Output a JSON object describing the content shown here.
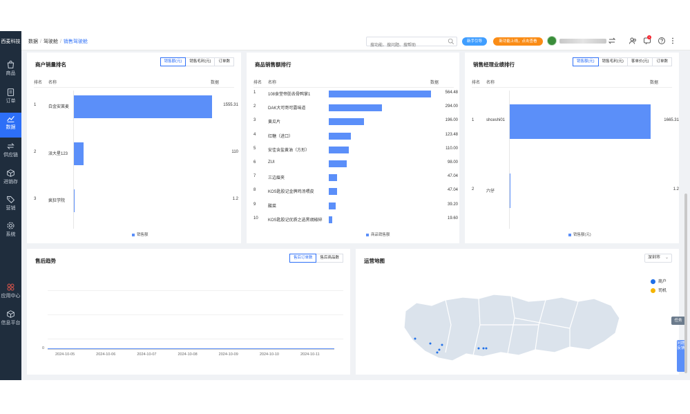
{
  "sidebar": {
    "brand": "西麦科技",
    "items": [
      {
        "label": "商品",
        "icon": "shopping-bag-icon"
      },
      {
        "label": "订单",
        "icon": "document-icon"
      },
      {
        "label": "数据",
        "icon": "line-chart-icon"
      },
      {
        "label": "供应链",
        "icon": "exchange-icon"
      },
      {
        "label": "进销存",
        "icon": "box-icon"
      },
      {
        "label": "营销",
        "icon": "tag-icon"
      },
      {
        "label": "系统",
        "icon": "gear-icon"
      },
      {
        "label": "应用中心",
        "icon": "apps-icon"
      },
      {
        "label": "信息平台",
        "icon": "cube-icon"
      }
    ]
  },
  "topbar": {
    "breadcrumb": [
      "数据",
      "驾驶舱",
      "销售驾驶舱"
    ],
    "search_placeholder": "搜功能、搜问题、搜帮助",
    "newbie_label": "新手引导",
    "announce_label": "新功能上线，点击查看",
    "notification_count": "1",
    "accent": "#2d6ff7"
  },
  "customer_rank": {
    "title": "商户销量排名",
    "buttons": [
      "销售额(元)",
      "销售毛利(元)",
      "订单数"
    ],
    "active_button": 0,
    "col_rank": "排名",
    "col_name": "名称",
    "col_value": "数据",
    "rows": [
      {
        "rank": "1",
        "name": "白金安莱麦",
        "value": "1555.31"
      },
      {
        "rank": "2",
        "name": "派大星123",
        "value": "110"
      },
      {
        "rank": "3",
        "name": "疯狂学院",
        "value": "1.2"
      }
    ],
    "legend": "销售额"
  },
  "product_rank": {
    "title": "商品销售额排行",
    "col_rank": "排名",
    "col_name": "名称",
    "col_value": "数据",
    "rows": [
      {
        "rank": "1",
        "name": "108食堂帝肪去骨鸭掌1",
        "value": "564.48"
      },
      {
        "rank": "2",
        "name": "DAK大可哥可露味道",
        "value": "294.00"
      },
      {
        "rank": "3",
        "name": "黄瓜片",
        "value": "196.00"
      },
      {
        "rank": "4",
        "name": "红糖（进口）",
        "value": "123.48"
      },
      {
        "rank": "5",
        "name": "安佳含盐黄油（方形）",
        "value": "110.00"
      },
      {
        "rank": "6",
        "name": "ZUI",
        "value": "98.00"
      },
      {
        "rank": "7",
        "name": "三边眉夹",
        "value": "47.04"
      },
      {
        "rank": "8",
        "name": "KOS匙胶记金牌鸡汤喂皮",
        "value": "47.04"
      },
      {
        "rank": "9",
        "name": "酸菜",
        "value": "39.20"
      },
      {
        "rank": "10",
        "name": "KOS匙胶记优质之选黑胡椒碎",
        "value": "19.60"
      }
    ],
    "legend": "商品销售额"
  },
  "manager_rank": {
    "title": "销售经理业绩排行",
    "buttons": [
      "销售额(元)",
      "销售毛利(元)",
      "客单价(元)",
      "订单数"
    ],
    "active_button": 0,
    "col_rank": "排名",
    "col_name": "名称",
    "col_value": "数据",
    "rows": [
      {
        "rank": "1",
        "name": "shceshi01",
        "value": "1665.31"
      },
      {
        "rank": "2",
        "name": "六仔",
        "value": "1.2"
      }
    ],
    "legend": "销售额(元)"
  },
  "aftersale": {
    "title": "售后趋势",
    "buttons": [
      "售后订单数",
      "售后商品数"
    ],
    "active_button": 0,
    "y_tick": "0",
    "x_ticks": [
      "2024-10-05",
      "2024-10-06",
      "2024-10-07",
      "2024-10-08",
      "2024-10-09",
      "2024-10-10",
      "2024-10-11"
    ]
  },
  "map": {
    "title": "运营地图",
    "city": "深圳市",
    "legend": [
      {
        "label": "商户",
        "color": "#1e6fe8"
      },
      {
        "label": "司机",
        "color": "#f5b400"
      }
    ]
  },
  "side_tabs": {
    "task": "任务",
    "feedback": "问题反馈"
  },
  "chart_data": [
    {
      "type": "bar",
      "title": "商户销量排名",
      "categories": [
        "白金安莱麦",
        "派大星123",
        "疯狂学院"
      ],
      "series": [
        {
          "name": "销售额",
          "values": [
            1555.31,
            110,
            1.2
          ]
        }
      ]
    },
    {
      "type": "bar",
      "title": "商品销售额排行",
      "categories": [
        "108食堂帝肪去骨鸭掌1",
        "DAK大可哥可露味道",
        "黄瓜片",
        "红糖（进口）",
        "安佳含盐黄油（方形）",
        "ZUI",
        "三边眉夹",
        "KOS匙胶记金牌鸡汤喂皮",
        "酸菜",
        "KOS匙胶记优质之选黑胡椒碎"
      ],
      "series": [
        {
          "name": "商品销售额",
          "values": [
            564.48,
            294.0,
            196.0,
            123.48,
            110.0,
            98.0,
            47.04,
            47.04,
            39.2,
            19.6
          ]
        }
      ]
    },
    {
      "type": "bar",
      "title": "销售经理业绩排行",
      "categories": [
        "shceshi01",
        "六仔"
      ],
      "series": [
        {
          "name": "销售额(元)",
          "values": [
            1665.31,
            1.2
          ]
        }
      ]
    },
    {
      "type": "line",
      "title": "售后趋势",
      "x": [
        "2024-10-05",
        "2024-10-06",
        "2024-10-07",
        "2024-10-08",
        "2024-10-09",
        "2024-10-10",
        "2024-10-11"
      ],
      "series": [
        {
          "name": "售后订单数",
          "values": [
            0,
            0,
            0,
            0,
            0,
            0,
            0
          ]
        }
      ]
    }
  ]
}
